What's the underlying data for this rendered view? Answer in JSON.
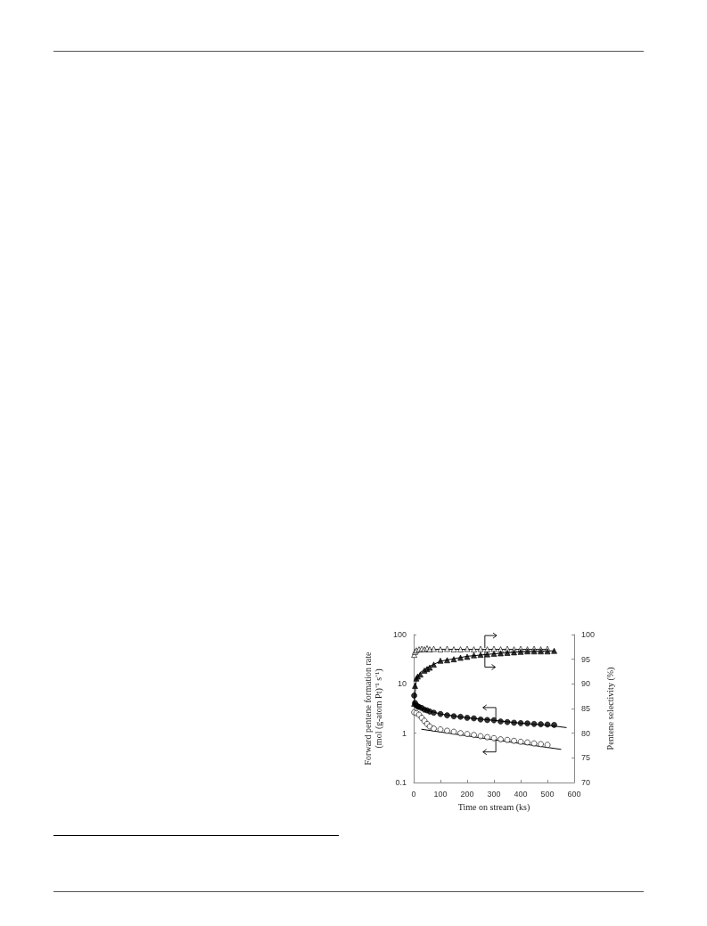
{
  "chart_data": {
    "type": "scatter",
    "xlabel": "Time on stream (ks)",
    "ylabel": "Forward pentene formation rate\n(mol (g-atom Pt)⁻¹ s⁻¹)",
    "y2label": "Pentene selectivity (%)",
    "xlim": [
      0,
      600
    ],
    "xticks": [
      0,
      100,
      200,
      300,
      400,
      500,
      600
    ],
    "ylim": [
      0.1,
      100
    ],
    "yticks": [
      0.1,
      1,
      10,
      100
    ],
    "y2lim": [
      70,
      100
    ],
    "y2ticks": [
      70,
      75,
      80,
      85,
      90,
      95,
      100
    ],
    "log": "y",
    "series": [
      {
        "type": "scatter",
        "axis": "y2",
        "marker": "triangle",
        "color": "#ffffff",
        "x": [
          2,
          5,
          10,
          20,
          30,
          40,
          50,
          60,
          75,
          100,
          125,
          150,
          175,
          200,
          225,
          250,
          275,
          300,
          325,
          350,
          375,
          400,
          425,
          450,
          475,
          500
        ],
        "values": [
          95.9,
          96.5,
          96.8,
          97.0,
          97.1,
          97.0,
          97.2,
          97.0,
          97.1,
          97.0,
          97.1,
          97.0,
          97.0,
          97.1,
          97.0,
          97.1,
          97.0,
          97.1,
          97.0,
          97.1,
          97.0,
          97.1,
          97.0,
          97.1,
          97.0,
          97.1
        ]
      },
      {
        "type": "line",
        "axis": "y2",
        "marker": "none",
        "line_style": "solid",
        "color": "#000000",
        "x": [
          0,
          20,
          50,
          100,
          200,
          300,
          400,
          500
        ],
        "values": [
          96.2,
          96.8,
          97.0,
          97.0,
          97.0,
          97.0,
          97.0,
          97.0
        ]
      },
      {
        "type": "scatter",
        "axis": "y2",
        "marker": "triangle",
        "color": "#000000",
        "x": [
          2,
          5,
          10,
          15,
          25,
          40,
          50,
          60,
          75,
          100,
          125,
          150,
          175,
          200,
          225,
          250,
          275,
          300,
          325,
          350,
          375,
          400,
          425,
          450,
          475,
          500,
          525
        ],
        "values": [
          86.0,
          89.6,
          91.1,
          91.5,
          91.9,
          92.7,
          93.0,
          93.3,
          93.9,
          94.7,
          94.8,
          95.0,
          95.3,
          95.5,
          95.8,
          95.9,
          96.0,
          96.1,
          96.2,
          96.3,
          96.4,
          96.5,
          96.6,
          96.6,
          96.6,
          96.6,
          96.7
        ]
      },
      {
        "type": "line",
        "axis": "y2",
        "marker": "none",
        "line_style": "solid",
        "color": "#000000",
        "x": [
          2,
          10,
          25,
          50,
          100,
          200,
          300,
          400,
          525
        ],
        "values": [
          86.0,
          91.0,
          92.3,
          93.3,
          94.6,
          95.6,
          96.1,
          96.5,
          96.7
        ]
      },
      {
        "type": "scatter",
        "axis": "y",
        "marker": "circle",
        "color": "#000000",
        "x": [
          2,
          5,
          10,
          15,
          20,
          30,
          40,
          50,
          60,
          75,
          100,
          125,
          150,
          175,
          200,
          225,
          250,
          275,
          300,
          325,
          350,
          375,
          400,
          425,
          450,
          475,
          500,
          525
        ],
        "values": [
          5.8,
          4.1,
          3.65,
          3.5,
          3.4,
          3.25,
          3.0,
          2.9,
          2.75,
          2.6,
          2.45,
          2.3,
          2.2,
          2.15,
          2.05,
          2.0,
          1.9,
          1.85,
          1.83,
          1.73,
          1.68,
          1.63,
          1.6,
          1.58,
          1.54,
          1.52,
          1.5,
          1.47
        ]
      },
      {
        "type": "line",
        "axis": "y",
        "marker": "none",
        "line_style": "solid",
        "color": "#000000",
        "x": [
          10,
          50,
          100,
          200,
          300,
          400,
          500,
          570
        ],
        "values": [
          3.6,
          2.9,
          2.45,
          2.05,
          1.82,
          1.6,
          1.45,
          1.3
        ]
      },
      {
        "type": "scatter",
        "axis": "y",
        "marker": "circle",
        "color": "#ffffff",
        "x": [
          2,
          10,
          20,
          30,
          40,
          50,
          60,
          75,
          100,
          125,
          150,
          175,
          200,
          225,
          250,
          275,
          300,
          325,
          350,
          375,
          400,
          425,
          450,
          475,
          500
        ],
        "values": [
          2.65,
          2.55,
          2.37,
          2.05,
          1.78,
          1.54,
          1.37,
          1.24,
          1.19,
          1.12,
          1.07,
          1.0,
          0.96,
          0.92,
          0.87,
          0.83,
          0.79,
          0.75,
          0.73,
          0.7,
          0.67,
          0.65,
          0.62,
          0.6,
          0.58
        ]
      },
      {
        "type": "line",
        "axis": "y",
        "marker": "none",
        "line_style": "solid",
        "color": "#000000",
        "x": [
          30,
          550
        ],
        "values": [
          1.2,
          0.47
        ]
      }
    ]
  }
}
